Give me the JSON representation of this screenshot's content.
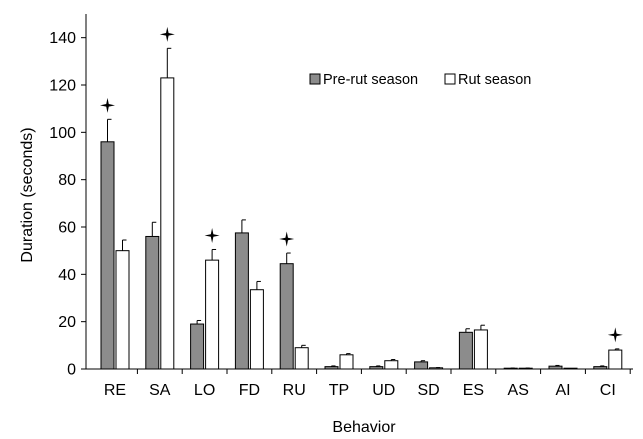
{
  "chart_data": {
    "type": "bar",
    "xlabel": "Behavior",
    "ylabel": "Duration (seconds)",
    "ylim": [
      0,
      150
    ],
    "yticks": [
      0,
      20,
      40,
      60,
      80,
      100,
      120,
      140
    ],
    "categories": [
      "RE",
      "SA",
      "LO",
      "FD",
      "RU",
      "TP",
      "UD",
      "SD",
      "ES",
      "AS",
      "AI",
      "CI"
    ],
    "series": [
      {
        "name": "Pre-rut season",
        "color": "#8c8c8c",
        "values": [
          96,
          56,
          19,
          57.5,
          44.5,
          1,
          1,
          3,
          15.5,
          0.3,
          1.2,
          1
        ],
        "errors": [
          9.5,
          6,
          1.5,
          5.5,
          4.5,
          0.3,
          0.3,
          0.5,
          1.5,
          0.1,
          0.3,
          0.3
        ]
      },
      {
        "name": "Rut season",
        "color": "#ffffff",
        "values": [
          50,
          123,
          46,
          33.5,
          9,
          6,
          3.5,
          0.5,
          16.5,
          0.3,
          0.1,
          8
        ],
        "errors": [
          4.5,
          12.5,
          4.5,
          3.5,
          1,
          0.5,
          0.5,
          0.1,
          2,
          0.1,
          0.05,
          0.5
        ]
      }
    ],
    "significant": [
      "RE",
      "SA",
      "LO",
      "RU",
      "CI"
    ],
    "significance_marker": "star-icon",
    "legend_position": "top-right",
    "grid": false
  }
}
